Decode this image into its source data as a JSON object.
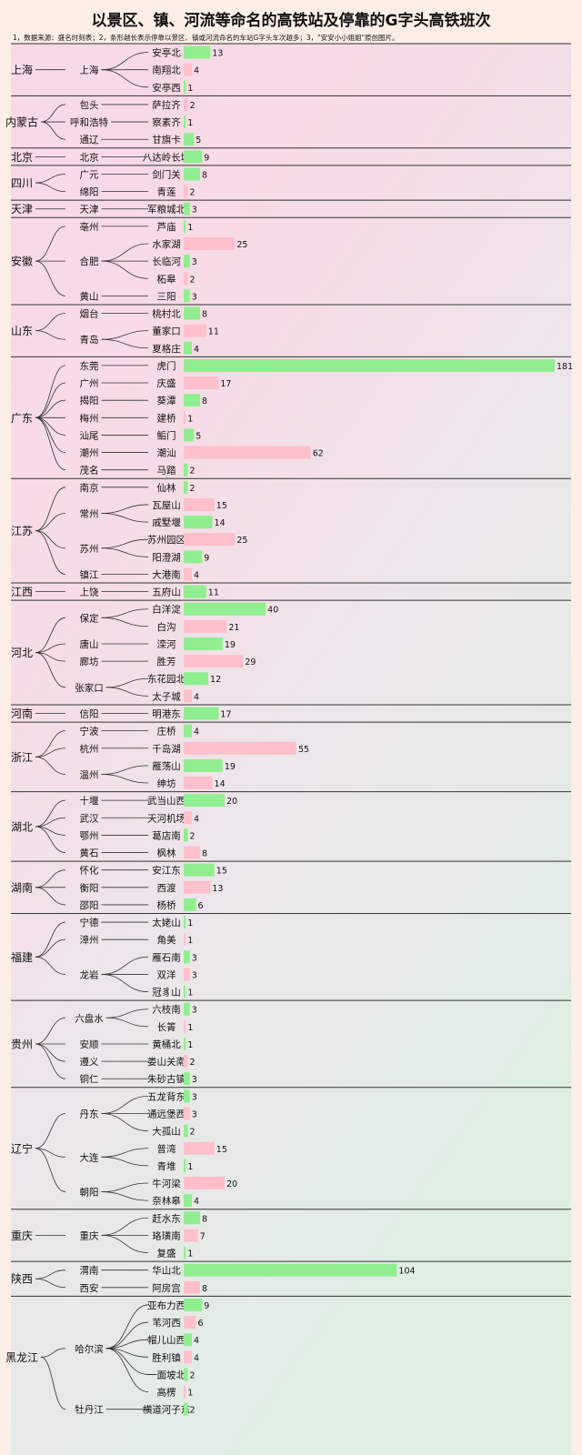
{
  "chart_data": {
    "type": "bar",
    "title": "以景区、镇、河流等命名的高铁站及停靠的G字头高铁班次",
    "subtitle": "1，数据来源：盛名时刻表；2，条形越长表示停靠以景区、镇或河流命名的车站G字头车次越多；3，\"安安小小姐姐\"原创图片。",
    "xlim": [
      0,
      181
    ],
    "colors": {
      "green": "#90ee90",
      "pink": "#ffc0cb"
    },
    "provinces": [
      {
        "name": "上海",
        "cities": [
          {
            "name": "上海",
            "stations": [
              {
                "name": "安亭北",
                "value": 13,
                "color": "green"
              },
              {
                "name": "南翔北",
                "value": 4,
                "color": "pink"
              },
              {
                "name": "安亭西",
                "value": 1,
                "color": "green"
              }
            ]
          }
        ]
      },
      {
        "name": "内蒙古",
        "cities": [
          {
            "name": "包头",
            "stations": [
              {
                "name": "萨拉齐",
                "value": 2,
                "color": "pink"
              }
            ]
          },
          {
            "name": "呼和浩特",
            "stations": [
              {
                "name": "察素齐",
                "value": 1,
                "color": "green"
              }
            ]
          },
          {
            "name": "通辽",
            "stations": [
              {
                "name": "甘旗卡",
                "value": 5,
                "color": "green"
              }
            ]
          }
        ]
      },
      {
        "name": "北京",
        "cities": [
          {
            "name": "北京",
            "stations": [
              {
                "name": "八达岭长城",
                "value": 9,
                "color": "green"
              }
            ]
          }
        ]
      },
      {
        "name": "四川",
        "cities": [
          {
            "name": "广元",
            "stations": [
              {
                "name": "剑门关",
                "value": 8,
                "color": "green"
              }
            ]
          },
          {
            "name": "绵阳",
            "stations": [
              {
                "name": "青莲",
                "value": 2,
                "color": "pink"
              }
            ]
          }
        ]
      },
      {
        "name": "天津",
        "cities": [
          {
            "name": "天津",
            "stations": [
              {
                "name": "军粮城北",
                "value": 3,
                "color": "green"
              }
            ]
          }
        ]
      },
      {
        "name": "安徽",
        "cities": [
          {
            "name": "亳州",
            "stations": [
              {
                "name": "芦庙",
                "value": 1,
                "color": "green"
              }
            ]
          },
          {
            "name": "合肥",
            "stations": [
              {
                "name": "水家湖",
                "value": 25,
                "color": "pink"
              },
              {
                "name": "长临河",
                "value": 3,
                "color": "green"
              },
              {
                "name": "柘皋",
                "value": 2,
                "color": "pink"
              }
            ]
          },
          {
            "name": "黄山",
            "stations": [
              {
                "name": "三阳",
                "value": 3,
                "color": "green"
              }
            ]
          }
        ]
      },
      {
        "name": "山东",
        "cities": [
          {
            "name": "烟台",
            "stations": [
              {
                "name": "桃村北",
                "value": 8,
                "color": "green"
              }
            ]
          },
          {
            "name": "青岛",
            "stations": [
              {
                "name": "董家口",
                "value": 11,
                "color": "pink"
              },
              {
                "name": "夏格庄",
                "value": 4,
                "color": "green"
              }
            ]
          }
        ]
      },
      {
        "name": "广东",
        "cities": [
          {
            "name": "东莞",
            "stations": [
              {
                "name": "虎门",
                "value": 181,
                "color": "green"
              }
            ]
          },
          {
            "name": "广州",
            "stations": [
              {
                "name": "庆盛",
                "value": 17,
                "color": "pink"
              }
            ]
          },
          {
            "name": "揭阳",
            "stations": [
              {
                "name": "葵潭",
                "value": 8,
                "color": "green"
              }
            ]
          },
          {
            "name": "梅州",
            "stations": [
              {
                "name": "建桥",
                "value": 1,
                "color": "pink"
              }
            ]
          },
          {
            "name": "汕尾",
            "stations": [
              {
                "name": "鲘门",
                "value": 5,
                "color": "green"
              }
            ]
          },
          {
            "name": "潮州",
            "stations": [
              {
                "name": "潮汕",
                "value": 62,
                "color": "pink"
              }
            ]
          },
          {
            "name": "茂名",
            "stations": [
              {
                "name": "马踏",
                "value": 2,
                "color": "green"
              }
            ]
          }
        ]
      },
      {
        "name": "江苏",
        "cities": [
          {
            "name": "南京",
            "stations": [
              {
                "name": "仙林",
                "value": 2,
                "color": "green"
              }
            ]
          },
          {
            "name": "常州",
            "stations": [
              {
                "name": "瓦屋山",
                "value": 15,
                "color": "pink"
              },
              {
                "name": "戚墅堰",
                "value": 14,
                "color": "green"
              }
            ]
          },
          {
            "name": "苏州",
            "stations": [
              {
                "name": "苏州园区",
                "value": 25,
                "color": "pink"
              },
              {
                "name": "阳澄湖",
                "value": 9,
                "color": "green"
              }
            ]
          },
          {
            "name": "镇江",
            "stations": [
              {
                "name": "大港南",
                "value": 4,
                "color": "pink"
              }
            ]
          }
        ]
      },
      {
        "name": "江西",
        "cities": [
          {
            "name": "上饶",
            "stations": [
              {
                "name": "五府山",
                "value": 11,
                "color": "green"
              }
            ]
          }
        ]
      },
      {
        "name": "河北",
        "cities": [
          {
            "name": "保定",
            "stations": [
              {
                "name": "白洋淀",
                "value": 40,
                "color": "green"
              },
              {
                "name": "白沟",
                "value": 21,
                "color": "pink"
              }
            ]
          },
          {
            "name": "唐山",
            "stations": [
              {
                "name": "滦河",
                "value": 19,
                "color": "green"
              }
            ]
          },
          {
            "name": "廊坊",
            "stations": [
              {
                "name": "胜芳",
                "value": 29,
                "color": "pink"
              }
            ]
          },
          {
            "name": "张家口",
            "stations": [
              {
                "name": "东花园北",
                "value": 12,
                "color": "green"
              },
              {
                "name": "太子城",
                "value": 4,
                "color": "pink"
              }
            ]
          }
        ]
      },
      {
        "name": "河南",
        "cities": [
          {
            "name": "信阳",
            "stations": [
              {
                "name": "明港东",
                "value": 17,
                "color": "green"
              }
            ]
          }
        ]
      },
      {
        "name": "浙江",
        "cities": [
          {
            "name": "宁波",
            "stations": [
              {
                "name": "庄桥",
                "value": 4,
                "color": "green"
              }
            ]
          },
          {
            "name": "杭州",
            "stations": [
              {
                "name": "千岛湖",
                "value": 55,
                "color": "pink"
              }
            ]
          },
          {
            "name": "温州",
            "stations": [
              {
                "name": "雁荡山",
                "value": 19,
                "color": "green"
              },
              {
                "name": "绅坊",
                "value": 14,
                "color": "pink"
              }
            ]
          }
        ]
      },
      {
        "name": "湖北",
        "cities": [
          {
            "name": "十堰",
            "stations": [
              {
                "name": "武当山西",
                "value": 20,
                "color": "green"
              }
            ]
          },
          {
            "name": "武汉",
            "stations": [
              {
                "name": "天河机场",
                "value": 4,
                "color": "pink"
              }
            ]
          },
          {
            "name": "鄂州",
            "stations": [
              {
                "name": "葛店南",
                "value": 2,
                "color": "green"
              }
            ]
          },
          {
            "name": "黄石",
            "stations": [
              {
                "name": "枫林",
                "value": 8,
                "color": "pink"
              }
            ]
          }
        ]
      },
      {
        "name": "湖南",
        "cities": [
          {
            "name": "怀化",
            "stations": [
              {
                "name": "安江东",
                "value": 15,
                "color": "green"
              }
            ]
          },
          {
            "name": "衡阳",
            "stations": [
              {
                "name": "西渡",
                "value": 13,
                "color": "pink"
              }
            ]
          },
          {
            "name": "邵阳",
            "stations": [
              {
                "name": "杨桥",
                "value": 6,
                "color": "green"
              }
            ]
          }
        ]
      },
      {
        "name": "福建",
        "cities": [
          {
            "name": "宁德",
            "stations": [
              {
                "name": "太姥山",
                "value": 1,
                "color": "green"
              }
            ]
          },
          {
            "name": "漳州",
            "stations": [
              {
                "name": "角美",
                "value": 1,
                "color": "pink"
              }
            ]
          },
          {
            "name": "龙岩",
            "stations": [
              {
                "name": "雁石南",
                "value": 3,
                "color": "green"
              },
              {
                "name": "双洋",
                "value": 3,
                "color": "pink"
              },
              {
                "name": "冠豸山",
                "value": 1,
                "color": "green"
              }
            ]
          }
        ]
      },
      {
        "name": "贵州",
        "cities": [
          {
            "name": "六盘水",
            "stations": [
              {
                "name": "六枝南",
                "value": 3,
                "color": "green"
              },
              {
                "name": "长箐",
                "value": 1,
                "color": "pink"
              }
            ]
          },
          {
            "name": "安顺",
            "stations": [
              {
                "name": "黄桶北",
                "value": 1,
                "color": "green"
              }
            ]
          },
          {
            "name": "遵义",
            "stations": [
              {
                "name": "娄山关南",
                "value": 2,
                "color": "pink"
              }
            ]
          },
          {
            "name": "铜仁",
            "stations": [
              {
                "name": "朱砂古镇",
                "value": 3,
                "color": "green"
              }
            ]
          }
        ]
      },
      {
        "name": "辽宁",
        "cities": [
          {
            "name": "丹东",
            "stations": [
              {
                "name": "五龙背东",
                "value": 3,
                "color": "green"
              },
              {
                "name": "通远堡西",
                "value": 3,
                "color": "pink"
              },
              {
                "name": "大孤山",
                "value": 2,
                "color": "green"
              }
            ]
          },
          {
            "name": "大连",
            "stations": [
              {
                "name": "普湾",
                "value": 15,
                "color": "pink"
              },
              {
                "name": "青堆",
                "value": 1,
                "color": "green"
              }
            ]
          },
          {
            "name": "朝阳",
            "stations": [
              {
                "name": "牛河梁",
                "value": 20,
                "color": "pink"
              },
              {
                "name": "奈林皋",
                "value": 4,
                "color": "green"
              }
            ]
          }
        ]
      },
      {
        "name": "重庆",
        "cities": [
          {
            "name": "重庆",
            "stations": [
              {
                "name": "赶水东",
                "value": 8,
                "color": "green"
              },
              {
                "name": "珞璜南",
                "value": 7,
                "color": "pink"
              },
              {
                "name": "复盛",
                "value": 1,
                "color": "green"
              }
            ]
          }
        ]
      },
      {
        "name": "陕西",
        "cities": [
          {
            "name": "渭南",
            "stations": [
              {
                "name": "华山北",
                "value": 104,
                "color": "green"
              }
            ]
          },
          {
            "name": "西安",
            "stations": [
              {
                "name": "阿房宫",
                "value": 8,
                "color": "pink"
              }
            ]
          }
        ]
      },
      {
        "name": "黑龙江",
        "cities": [
          {
            "name": "哈尔滨",
            "stations": [
              {
                "name": "亚布力西",
                "value": 9,
                "color": "green"
              },
              {
                "name": "苇河西",
                "value": 6,
                "color": "pink"
              },
              {
                "name": "帽儿山西",
                "value": 4,
                "color": "green"
              },
              {
                "name": "胜利镇",
                "value": 4,
                "color": "pink"
              },
              {
                "name": "一面坡北",
                "value": 2,
                "color": "green"
              },
              {
                "name": "高楞",
                "value": 1,
                "color": "pink"
              }
            ]
          },
          {
            "name": "牡丹江",
            "stations": [
              {
                "name": "横道河子东",
                "value": 2,
                "color": "green"
              }
            ]
          }
        ]
      }
    ]
  }
}
